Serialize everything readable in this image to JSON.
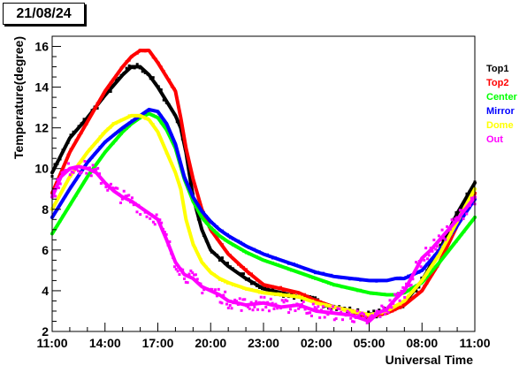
{
  "header": {
    "date_label": "21/08/24"
  },
  "chart_data": {
    "type": "scatter",
    "title": "",
    "xlabel": "Universal Time",
    "ylabel": "Temperature(degree)",
    "xlim": [
      0,
      24
    ],
    "ylim": [
      2,
      16.5
    ],
    "x_ticks": [
      {
        "x": 0,
        "label": "11:00"
      },
      {
        "x": 3,
        "label": "14:00"
      },
      {
        "x": 6,
        "label": "17:00"
      },
      {
        "x": 9,
        "label": "20:00"
      },
      {
        "x": 12,
        "label": "23:00"
      },
      {
        "x": 15,
        "label": "02:00"
      },
      {
        "x": 18,
        "label": "05:00"
      },
      {
        "x": 21,
        "label": "08:00"
      },
      {
        "x": 24,
        "label": "11:00"
      }
    ],
    "y_ticks": [
      2,
      4,
      6,
      8,
      10,
      12,
      14,
      16
    ],
    "x_unit_note": "hours after 11:00 UT",
    "series": [
      {
        "name": "Top1",
        "color": "#000000",
        "x": [
          0,
          1,
          2,
          3,
          4,
          4.5,
          5,
          5.5,
          6,
          6.5,
          7,
          7.3,
          7.6,
          8,
          8.5,
          9,
          9.5,
          10,
          11,
          12,
          13,
          14,
          15,
          16,
          17,
          18,
          19,
          20,
          21,
          22,
          23,
          24
        ],
        "y": [
          9.8,
          11.5,
          12.5,
          13.6,
          14.6,
          15.0,
          15.0,
          14.6,
          14.0,
          13.3,
          12.6,
          12.0,
          10.8,
          8.6,
          7.0,
          6.0,
          5.6,
          5.2,
          4.6,
          4.1,
          3.9,
          3.7,
          3.5,
          3.2,
          3.0,
          2.8,
          3.0,
          3.4,
          4.5,
          6.0,
          7.8,
          9.3
        ]
      },
      {
        "name": "Top2",
        "color": "#ff0000",
        "x": [
          0,
          1,
          2,
          3,
          4,
          4.5,
          5,
          5.5,
          6,
          6.5,
          7,
          7.3,
          7.6,
          8,
          8.5,
          9,
          9.5,
          10,
          11,
          12,
          13,
          14,
          15,
          16,
          17,
          18,
          19,
          20,
          21,
          22,
          23,
          24
        ],
        "y": [
          8.8,
          10.8,
          12.3,
          13.8,
          15.0,
          15.5,
          15.8,
          15.8,
          15.2,
          14.5,
          13.8,
          12.5,
          11.0,
          9.5,
          8.0,
          7.0,
          6.4,
          5.8,
          5.0,
          4.3,
          4.1,
          3.9,
          3.5,
          3.2,
          3.0,
          2.7,
          2.9,
          3.3,
          4.0,
          5.4,
          7.2,
          8.8
        ]
      },
      {
        "name": "Center",
        "color": "#00ff00",
        "x": [
          0,
          1,
          2,
          3,
          4,
          4.5,
          5,
          5.5,
          6,
          6.5,
          7,
          7.5,
          8,
          8.5,
          9,
          9.5,
          10,
          11,
          12,
          13,
          14,
          15,
          16,
          17,
          18,
          19,
          19.5,
          20,
          21,
          22,
          23,
          24
        ],
        "y": [
          6.8,
          8.2,
          9.6,
          10.8,
          11.8,
          12.2,
          12.5,
          12.7,
          12.5,
          11.9,
          11.0,
          9.5,
          8.4,
          7.6,
          7.1,
          6.7,
          6.4,
          5.9,
          5.5,
          5.2,
          4.9,
          4.6,
          4.3,
          4.1,
          3.9,
          3.8,
          3.8,
          3.9,
          4.4,
          5.4,
          6.5,
          7.6
        ]
      },
      {
        "name": "Mirror",
        "color": "#0000ff",
        "x": [
          0,
          1,
          2,
          3,
          4,
          4.5,
          5,
          5.5,
          6,
          6.5,
          7,
          7.5,
          8,
          8.5,
          9,
          9.5,
          10,
          11,
          12,
          13,
          14,
          15,
          16,
          17,
          18,
          19,
          19.5,
          20,
          21,
          22,
          23,
          24
        ],
        "y": [
          7.6,
          9.0,
          10.3,
          11.3,
          12.0,
          12.3,
          12.6,
          12.9,
          12.8,
          12.2,
          11.2,
          9.6,
          8.6,
          7.9,
          7.4,
          7.0,
          6.7,
          6.2,
          5.8,
          5.5,
          5.2,
          4.9,
          4.7,
          4.6,
          4.5,
          4.5,
          4.6,
          4.6,
          5.0,
          6.0,
          7.2,
          8.5
        ]
      },
      {
        "name": "Dome",
        "color": "#ffff00",
        "x": [
          0,
          1,
          2,
          3,
          3.5,
          4,
          4.5,
          5,
          5.5,
          6,
          6.5,
          7,
          7.3,
          7.6,
          8,
          8.5,
          9,
          9.5,
          10,
          11,
          12,
          13,
          14,
          15,
          16,
          17,
          18,
          19,
          20,
          21,
          22,
          23,
          24
        ],
        "y": [
          8.0,
          9.6,
          10.8,
          11.8,
          12.2,
          12.4,
          12.6,
          12.6,
          12.4,
          11.8,
          10.8,
          9.8,
          9.0,
          7.5,
          6.3,
          5.4,
          4.9,
          4.6,
          4.4,
          4.1,
          3.9,
          3.8,
          3.7,
          3.4,
          3.2,
          3.0,
          2.8,
          3.0,
          3.5,
          4.5,
          5.8,
          7.4,
          9.0
        ]
      },
      {
        "name": "Out",
        "color": "#ff00ff",
        "x": [
          0,
          0.5,
          1,
          1.5,
          2,
          2.5,
          3,
          3.5,
          4,
          4.5,
          5,
          5.5,
          6,
          6.5,
          7,
          7.5,
          8,
          8.5,
          9,
          9.5,
          10,
          11,
          12,
          13,
          14,
          15,
          16,
          17,
          18,
          18.5,
          19,
          19.5,
          20,
          20.5,
          21,
          21.5,
          22,
          23,
          24
        ],
        "y": [
          8.6,
          9.6,
          10.0,
          10.1,
          10.0,
          9.8,
          9.3,
          8.9,
          8.6,
          8.4,
          8.1,
          7.8,
          7.5,
          6.5,
          5.4,
          4.8,
          4.6,
          4.2,
          4.0,
          3.8,
          3.5,
          3.3,
          3.4,
          3.2,
          3.3,
          3.0,
          2.9,
          2.8,
          2.5,
          2.9,
          3.1,
          3.6,
          4.0,
          4.8,
          5.6,
          6.0,
          6.5,
          7.5,
          8.6
        ]
      }
    ],
    "legend": {
      "placement": "right-outside"
    },
    "grid": false
  }
}
